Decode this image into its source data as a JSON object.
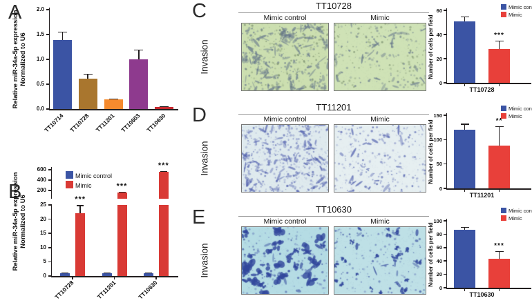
{
  "figure": {
    "background": "#ffffff",
    "axis_color": "#231f20"
  },
  "panels": {
    "A": {
      "letter": "A"
    },
    "B": {
      "letter": "B"
    },
    "C": {
      "letter": "C",
      "title": "TT10728",
      "row_label": "Invasion",
      "images": [
        {
          "label": "Mimic control",
          "density": "dense",
          "background": "#ccdfb0"
        },
        {
          "label": "Mimic",
          "density": "sparse",
          "background": "#cfe2b6"
        }
      ],
      "microscopy": {
        "cell_shape": "streaks",
        "cell_color": "#64758b",
        "accent_color": "#7a8f6e"
      }
    },
    "D": {
      "letter": "D",
      "title": "TT11201",
      "row_label": "Invasion",
      "images": [
        {
          "label": "Mimic control",
          "density": "dense",
          "background": "#dfeaee"
        },
        {
          "label": "Mimic",
          "density": "sparse",
          "background": "#e6eff1"
        }
      ],
      "microscopy": {
        "cell_shape": "specks",
        "cell_color": "#4d5cac",
        "accent_color": "#8b97c9"
      }
    },
    "E": {
      "letter": "E",
      "title": "TT10630",
      "row_label": "Invasion",
      "images": [
        {
          "label": "Mimic control",
          "density": "dense",
          "background": "#b5dce4"
        },
        {
          "label": "Mimic",
          "density": "sparse",
          "background": "#bee0e6"
        }
      ],
      "microscopy": {
        "cell_shape": "clusters",
        "cell_color": "#32479c",
        "accent_color": "#5a6db5"
      }
    }
  },
  "chart_data": [
    {
      "id": "A",
      "type": "bar",
      "ylabel": "Relative miR-34a-5p expression\nNormalized to U6",
      "categories": [
        "TT10714",
        "TT10728",
        "TT11201",
        "TT10603",
        "TT10630"
      ],
      "values": [
        1.39,
        0.61,
        0.19,
        1.0,
        0.04
      ],
      "errors": [
        0.17,
        0.1,
        0.02,
        0.2,
        0.02
      ],
      "bar_colors": [
        "#3b54a4",
        "#a9762e",
        "#f68b2e",
        "#8e3a8e",
        "#c6282e"
      ],
      "ylim": [
        0,
        2.0
      ],
      "yticks": [
        0.0,
        0.5,
        1.0,
        1.5,
        2.0
      ],
      "grid": false
    },
    {
      "id": "B",
      "type": "bar-grouped-broken-axis",
      "ylabel": "Relative miR-34a-5p expression\nNormalized to U6",
      "categories": [
        "TT10728",
        "TT11201",
        "TT10630"
      ],
      "series": [
        {
          "name": "Mimic control",
          "color": "#3b54a4",
          "values": [
            1,
            1,
            1
          ],
          "errors": [
            0.3,
            0.3,
            0.3
          ]
        },
        {
          "name": "Mimic",
          "color": "#d93a35",
          "values": [
            22,
            160,
            560
          ],
          "errors": [
            3,
            15,
            20
          ]
        }
      ],
      "significance": [
        "***",
        "***",
        "***"
      ],
      "axis_break": {
        "lower_range": [
          0,
          25
        ],
        "lower_ticks": [
          0,
          5,
          10,
          15,
          20,
          25
        ],
        "upper_ticks": [
          200,
          400,
          600
        ]
      },
      "legend_position": "top-left",
      "grid": false
    },
    {
      "id": "C",
      "type": "bar",
      "ylabel": "Number of cells per field",
      "categories": [
        "TT10728"
      ],
      "series": [
        {
          "name": "Mimic control",
          "color": "#3b54a4",
          "values": [
            51
          ],
          "errors": [
            4
          ]
        },
        {
          "name": "Mimic",
          "color": "#e8403a",
          "values": [
            28
          ],
          "errors": [
            7
          ]
        }
      ],
      "significance": [
        "***"
      ],
      "ylim": [
        0,
        60
      ],
      "yticks": [
        0,
        20,
        40,
        60
      ],
      "legend_position": "top-right",
      "grid": false
    },
    {
      "id": "D",
      "type": "bar",
      "ylabel": "Number of cells per field",
      "categories": [
        "TT11201"
      ],
      "series": [
        {
          "name": "Mimic control",
          "color": "#3b54a4",
          "values": [
            120
          ],
          "errors": [
            13
          ]
        },
        {
          "name": "Mimic",
          "color": "#e8403a",
          "values": [
            88
          ],
          "errors": [
            40
          ]
        }
      ],
      "significance": [
        "**"
      ],
      "ylim": [
        0,
        150
      ],
      "yticks": [
        0,
        50,
        100,
        150
      ],
      "legend_position": "top-right",
      "grid": false
    },
    {
      "id": "E",
      "type": "bar",
      "ylabel": "Number of cells per field",
      "categories": [
        "TT10630"
      ],
      "series": [
        {
          "name": "Mimic control",
          "color": "#3b54a4",
          "values": [
            87
          ],
          "errors": [
            4
          ]
        },
        {
          "name": "Mimic",
          "color": "#e8403a",
          "values": [
            43
          ],
          "errors": [
            12
          ]
        }
      ],
      "significance": [
        "***"
      ],
      "ylim": [
        0,
        100
      ],
      "yticks": [
        0,
        20,
        40,
        60,
        80,
        100
      ],
      "legend_position": "top-right",
      "grid": false
    }
  ]
}
